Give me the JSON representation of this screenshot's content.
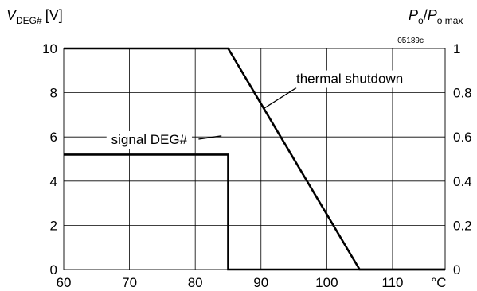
{
  "chart_data": {
    "type": "line",
    "figure_code": "05189c",
    "x_unit_label": "°C",
    "x_ticks": [
      60,
      70,
      80,
      90,
      100,
      110
    ],
    "xlim": [
      60,
      118
    ],
    "y_left": {
      "label_main": "V",
      "label_sub": "DEG#",
      "label_unit": "[V]",
      "ticks": [
        0,
        2,
        4,
        6,
        8,
        10
      ],
      "ylim": [
        0,
        10
      ]
    },
    "y_right": {
      "label_num_main": "P",
      "label_num_sub": "o",
      "label_sep": "/",
      "label_den_main": "P",
      "label_den_sub": "o max",
      "ticks": [
        "0",
        "0.2",
        "0.4",
        "0.6",
        "0.8",
        "1"
      ],
      "ylim": [
        0,
        1
      ]
    },
    "series": [
      {
        "name": "thermal shutdown",
        "axis": "right",
        "points": [
          [
            60,
            1
          ],
          [
            85,
            1
          ],
          [
            105,
            0
          ],
          [
            118,
            0
          ]
        ],
        "label_at": [
          101.5,
          0.865
        ],
        "leader_to": [
          90.5,
          0.73
        ]
      },
      {
        "name": "signal DEG#",
        "axis": "left",
        "points": [
          [
            60,
            5.2
          ],
          [
            85,
            5.2
          ],
          [
            85,
            0
          ],
          [
            118,
            0
          ]
        ],
        "label_at": [
          73,
          5.9
        ],
        "leader_to": [
          84,
          6.05
        ]
      }
    ]
  }
}
